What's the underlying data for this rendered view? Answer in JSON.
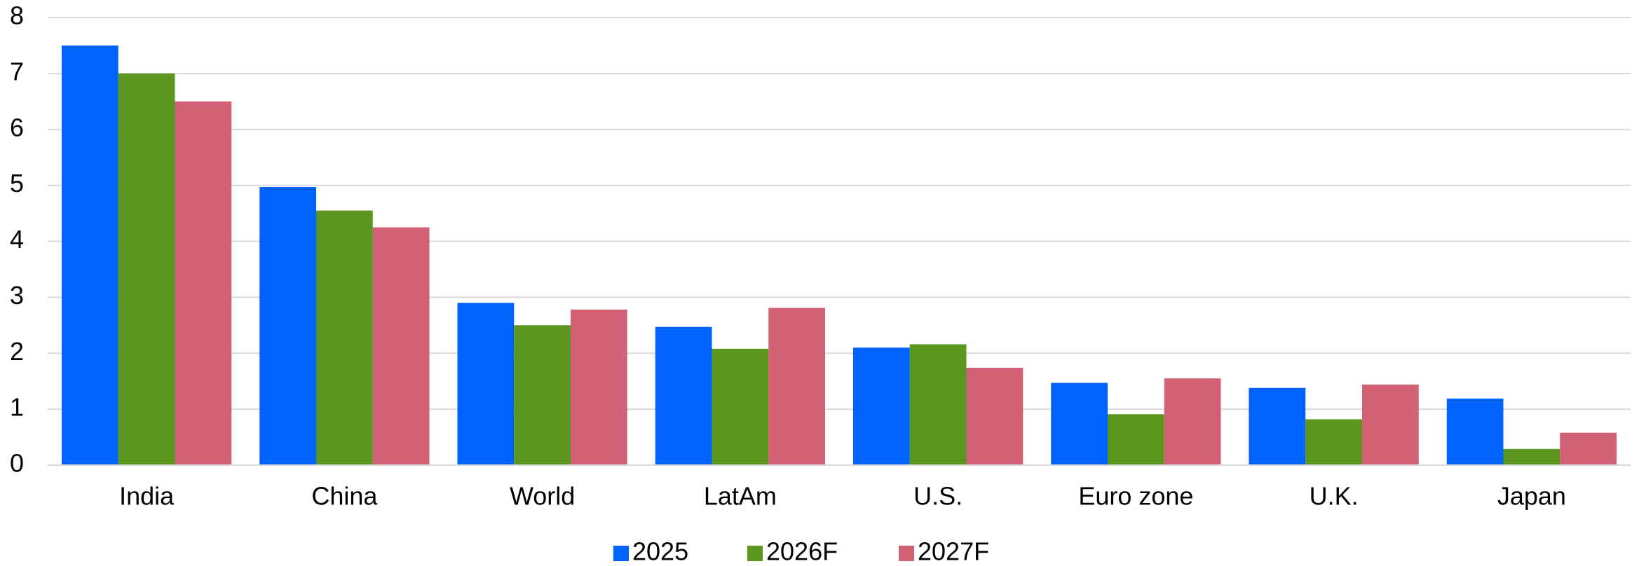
{
  "chart_data": {
    "type": "bar",
    "title": "",
    "xlabel": "",
    "ylabel": "",
    "categories": [
      "India",
      "China",
      "World",
      "LatAm",
      "U.S.",
      "Euro zone",
      "U.K.",
      "Japan"
    ],
    "series": [
      {
        "name": "2025",
        "color": "#0062FF",
        "values": [
          7.5,
          4.97,
          2.9,
          2.47,
          2.1,
          1.47,
          1.38,
          1.19
        ]
      },
      {
        "name": "2026F",
        "color": "#5B961F",
        "values": [
          7.0,
          4.55,
          2.5,
          2.08,
          2.16,
          0.91,
          0.82,
          0.29
        ]
      },
      {
        "name": "2027F",
        "color": "#D26175",
        "values": [
          6.5,
          4.25,
          2.78,
          2.81,
          1.74,
          1.55,
          1.44,
          0.58
        ]
      }
    ],
    "ylim": [
      0,
      8
    ],
    "yticks": [
      "0",
      "1",
      "2",
      "3",
      "4",
      "5",
      "6",
      "7",
      "8"
    ],
    "grid": true,
    "legend_position": "bottom"
  }
}
